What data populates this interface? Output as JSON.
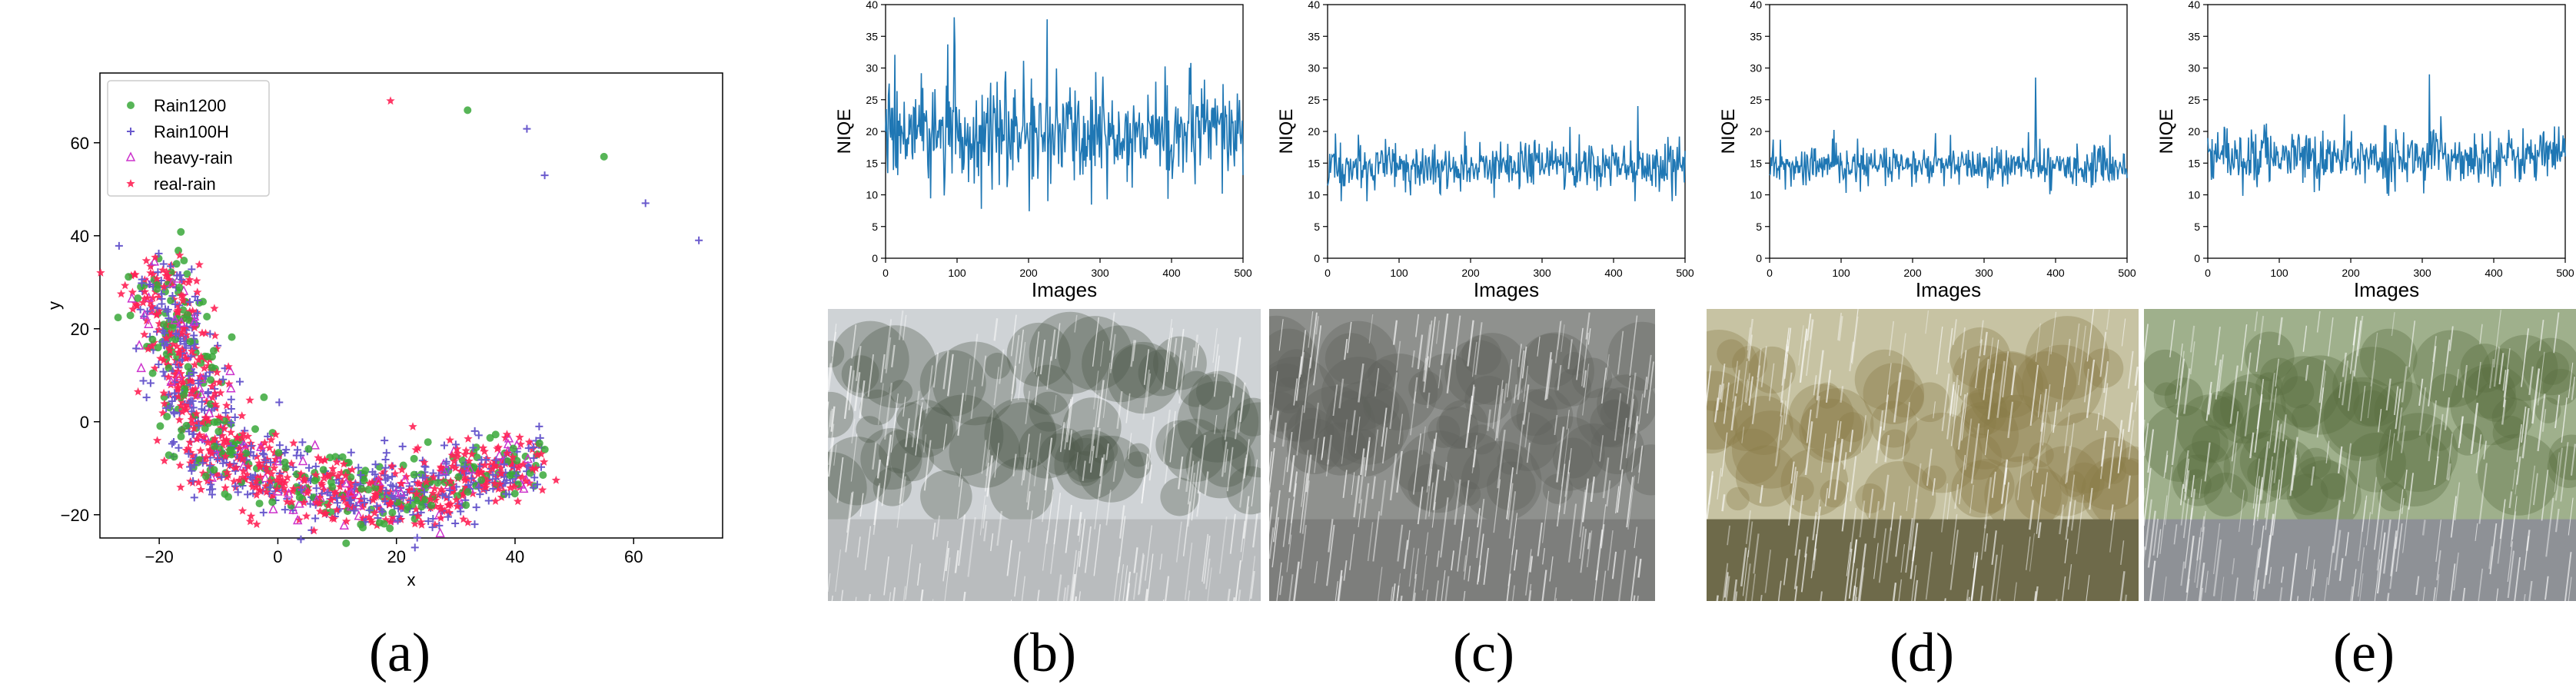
{
  "captions": [
    "(a)",
    "(b)",
    "(c)",
    "(d)",
    "(e)"
  ],
  "colors": {
    "rain1200": "#3aa83a",
    "rain100h": "#6a5acd",
    "heavyrain": "#cc33cc",
    "realrain": "#ff2255",
    "niqe_line": "#1f77b4"
  },
  "chart_data": [
    {
      "type": "scatter",
      "xlabel": "x",
      "ylabel": "y",
      "xlim": [
        -30,
        75
      ],
      "ylim": [
        -25,
        75
      ],
      "xticks": [
        -20,
        0,
        20,
        40,
        60
      ],
      "yticks": [
        -20,
        0,
        20,
        40,
        60
      ],
      "legend": [
        "Rain1200",
        "Rain100H",
        "heavy-rain",
        "real-rain"
      ],
      "legend_placement": "top-left",
      "outliers": [
        {
          "series": "real-rain",
          "x": 19,
          "y": 69
        },
        {
          "series": "Rain1200",
          "x": 32,
          "y": 67
        },
        {
          "series": "Rain100H",
          "x": 42,
          "y": 63
        },
        {
          "series": "Rain100H",
          "x": 45,
          "y": 53
        },
        {
          "series": "Rain1200",
          "x": 55,
          "y": 57
        },
        {
          "series": "Rain100H",
          "x": 62,
          "y": 47
        },
        {
          "series": "Rain100H",
          "x": 71,
          "y": 39
        }
      ]
    },
    {
      "type": "line",
      "xlabel": "Images",
      "ylabel": "NIQE",
      "xlim": [
        0,
        500
      ],
      "ylim": [
        0,
        40
      ],
      "xticks": [
        0,
        100,
        200,
        300,
        400,
        500
      ],
      "yticks": [
        0,
        5,
        10,
        15,
        20,
        25,
        30,
        35,
        40
      ],
      "mean": 19.5,
      "spread": 5.5,
      "max": 38
    },
    {
      "type": "line",
      "xlabel": "Images",
      "ylabel": "NIQE",
      "xlim": [
        0,
        500
      ],
      "ylim": [
        0,
        40
      ],
      "xticks": [
        0,
        100,
        200,
        300,
        400,
        500
      ],
      "yticks": [
        0,
        5,
        10,
        15,
        20,
        25,
        30,
        35,
        40
      ],
      "mean": 14.5,
      "spread": 2.5,
      "max": 24
    },
    {
      "type": "line",
      "xlabel": "Images",
      "ylabel": "NIQE",
      "xlim": [
        0,
        500
      ],
      "ylim": [
        0,
        40
      ],
      "xticks": [
        0,
        100,
        200,
        300,
        400,
        500
      ],
      "yticks": [
        0,
        5,
        10,
        15,
        20,
        25,
        30,
        35,
        40
      ],
      "mean": 14.5,
      "spread": 2.0,
      "max": 28.5
    },
    {
      "type": "line",
      "xlabel": "Images",
      "ylabel": "NIQE",
      "xlim": [
        0,
        500
      ],
      "ylim": [
        0,
        40
      ],
      "xticks": [
        0,
        100,
        200,
        300,
        400,
        500
      ],
      "yticks": [
        0,
        5,
        10,
        15,
        20,
        25,
        30,
        35,
        40
      ],
      "mean": 16.0,
      "spread": 2.8,
      "max": 29
    }
  ],
  "photos": [
    {
      "name": "rainy-building-trees-photo",
      "sky": "#cfd3d6",
      "fg": "#4c5a4a",
      "ground": "#b9bcbe"
    },
    {
      "name": "rainy-car-street-photo",
      "sky": "#8f918e",
      "fg": "#5e625c",
      "ground": "#7d7e7c"
    },
    {
      "name": "rainy-temple-photo",
      "sky": "#c7c3a3",
      "fg": "#8a7a48",
      "ground": "#6e6a4a"
    },
    {
      "name": "rainy-trucks-parking-photo",
      "sky": "#9fb08c",
      "fg": "#5a6e3e",
      "ground": "#8e9196"
    }
  ]
}
